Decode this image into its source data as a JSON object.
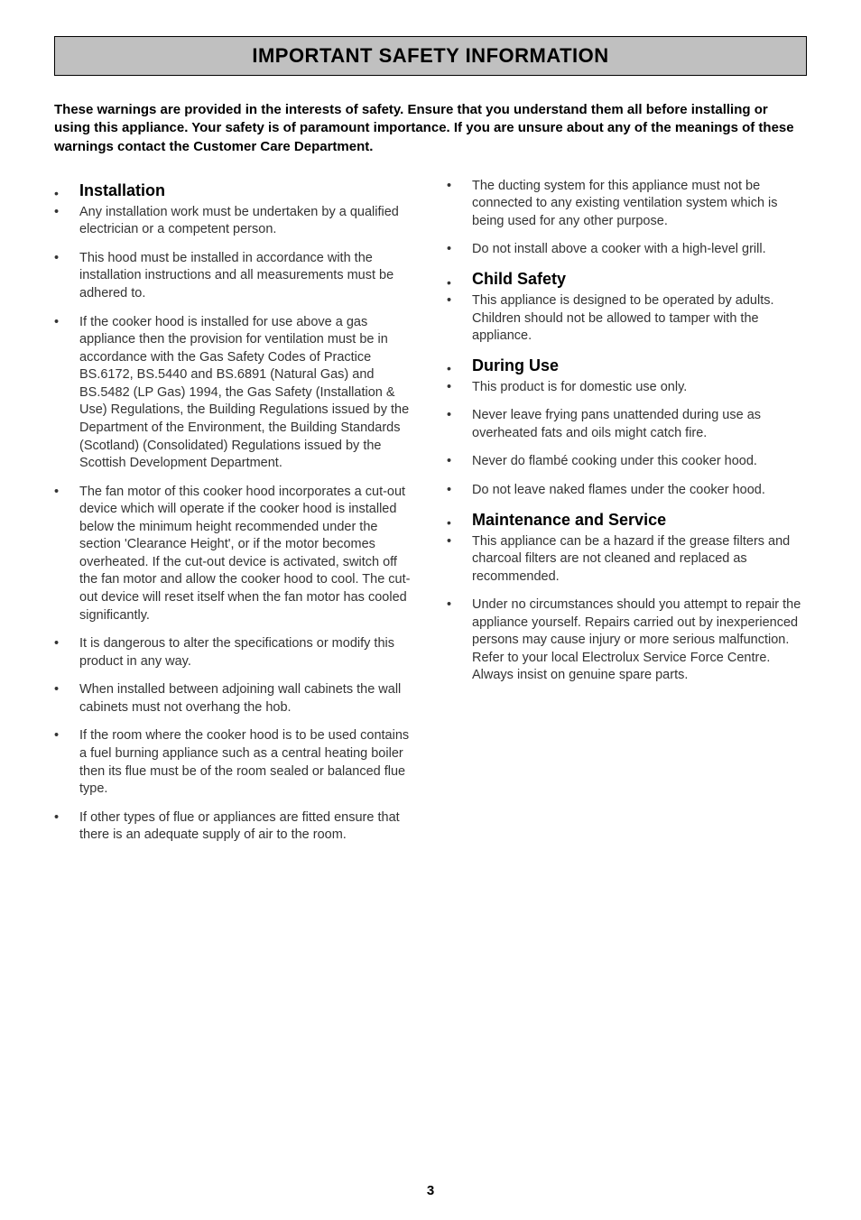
{
  "page": {
    "banner_title": "IMPORTANT SAFETY INFORMATION",
    "intro": "These warnings are provided in the interests of safety. Ensure that you understand them all before installing or using this appliance. Your safety is of paramount importance. If you are unsure about any of the meanings  of these warnings contact the Customer Care Department.",
    "page_number": "3"
  },
  "colors": {
    "banner_bg": "#c0c0c0",
    "text": "#333333",
    "heading": "#000000",
    "page_bg": "#ffffff"
  },
  "typography": {
    "body_font": "Arial, Helvetica, sans-serif",
    "banner_title_size_pt": 22,
    "section_title_size_pt": 18,
    "body_size_pt": 14.5,
    "intro_size_pt": 15
  },
  "left": {
    "sections": [
      {
        "title": "Installation",
        "items": [
          "Any installation work must be undertaken by a qualified electrician or a competent person.",
          "This hood must be installed in accordance with the installation instructions and all measurements must be adhered to.",
          "If the cooker hood is installed for use above a gas appliance then the provision for ventilation must be in accordance with the Gas Safety Codes of Practice BS.6172, BS.5440 and BS.6891 (Natural Gas) and BS.5482 (LP Gas) 1994, the Gas Safety (Installation & Use) Regulations, the Building Regulations issued by the Department of the Environment, the Building Standards (Scotland) (Consolidated) Regulations issued by the Scottish Development Department.",
          "The fan motor of this cooker hood incorporates a cut-out device which will operate if the cooker hood is installed below the minimum height recommended under the section 'Clearance Height', or if the motor becomes overheated. If the cut-out device is activated, switch off the fan motor and allow the cooker hood to cool. The cut-out device will reset itself when the fan motor has cooled significantly.",
          "It is dangerous to alter the specifications or modify this product in any way.",
          "When installed between adjoining wall cabinets the wall cabinets must not overhang the hob.",
          "If the room where the cooker hood is to be used contains a fuel burning appliance such as a central heating boiler then its flue must be of the room sealed or balanced flue type.",
          "If other types of flue or appliances are fitted ensure that there is an adequate supply of air to the room."
        ]
      }
    ]
  },
  "right": {
    "pre_items": [
      "The ducting system for this appliance must not be connected to any existing ventilation system which is being used for any other purpose.",
      "Do not install above a cooker with a high-level grill."
    ],
    "sections": [
      {
        "title": "Child Safety",
        "items": [
          "This appliance is designed to be operated by adults. Children should not be allowed to tamper with the appliance."
        ]
      },
      {
        "title": "During Use",
        "items": [
          "This product is for domestic use only.",
          "Never leave frying pans unattended during use as overheated fats and oils might catch fire.",
          "Never do flambé cooking under this cooker hood.",
          "Do not leave naked flames under the cooker hood."
        ]
      },
      {
        "title": "Maintenance and Service",
        "items": [
          "This appliance can be a hazard if the grease filters and charcoal filters are not cleaned and replaced as recommended.",
          "Under no circumstances should you attempt to repair the appliance yourself. Repairs carried out by inexperienced persons may cause injury or more serious malfunction. Refer to your local Electrolux Service Force Centre. Always insist on genuine spare parts."
        ]
      }
    ]
  }
}
